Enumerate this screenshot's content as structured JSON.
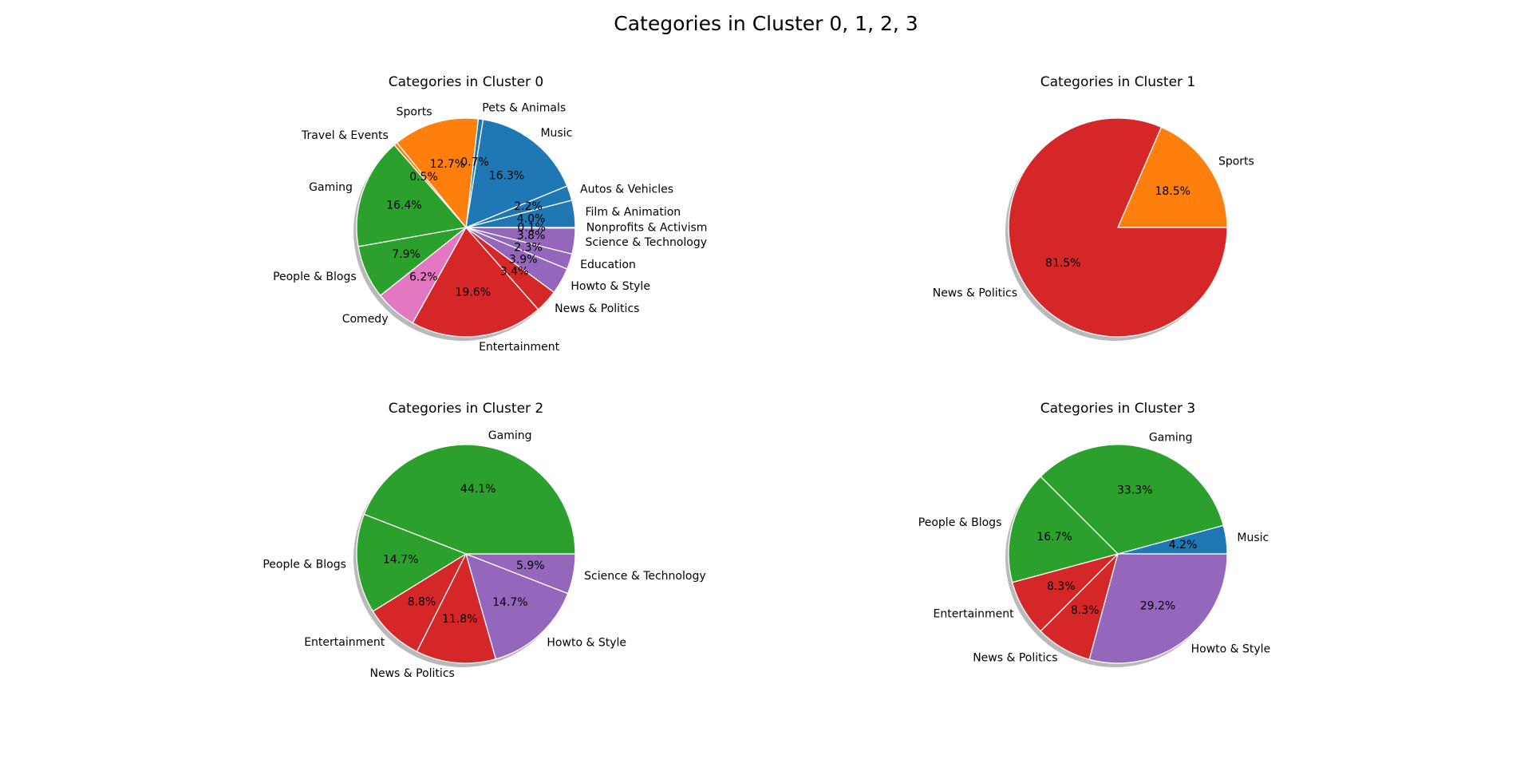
{
  "title": "Categories in Cluster 0, 1, 2, 3",
  "colors": {
    "blue": "#1f77b4",
    "orange": "#ff7f0e",
    "green": "#2ca02c",
    "red": "#d62728",
    "purple": "#9467bd",
    "pink": "#e377c2",
    "shadow": "#7f7f7f",
    "edge": "#ffffff"
  },
  "chart_data": [
    {
      "type": "pie",
      "title": "Categories in Cluster 0",
      "shadow": true,
      "start_angle": 0,
      "direction": "counterclockwise",
      "categories": [
        "Film & Animation",
        "Autos & Vehicles",
        "Music",
        "Pets & Animals",
        "Sports",
        "Travel & Events",
        "Gaming",
        "People & Blogs",
        "Comedy",
        "Entertainment",
        "News & Politics",
        "Howto & Style",
        "Education",
        "Science & Technology",
        "Nonprofits & Activism"
      ],
      "values": [
        4.0,
        2.2,
        16.3,
        0.7,
        12.7,
        0.5,
        16.4,
        7.9,
        6.2,
        19.6,
        3.4,
        3.9,
        2.3,
        3.8,
        0.1
      ],
      "labels": [
        "4.0%",
        "2.2%",
        "16.3%",
        "0.7%",
        "12.7%",
        "0.5%",
        "16.4%",
        "7.9%",
        "6.2%",
        "19.6%",
        "3.4%",
        "3.9%",
        "2.3%",
        "3.8%",
        "0.1%"
      ],
      "colors": [
        "#1f77b4",
        "#1f77b4",
        "#1f77b4",
        "#1f77b4",
        "#ff7f0e",
        "#ff7f0e",
        "#2ca02c",
        "#2ca02c",
        "#e377c2",
        "#d62728",
        "#d62728",
        "#9467bd",
        "#9467bd",
        "#9467bd",
        "#9467bd"
      ]
    },
    {
      "type": "pie",
      "title": "Categories in Cluster 1",
      "shadow": true,
      "start_angle": 0,
      "direction": "counterclockwise",
      "categories": [
        "Sports",
        "News & Politics"
      ],
      "values": [
        18.5,
        81.5
      ],
      "labels": [
        "18.5%",
        "81.5%"
      ],
      "colors": [
        "#ff7f0e",
        "#d62728"
      ]
    },
    {
      "type": "pie",
      "title": "Categories in Cluster 2",
      "shadow": true,
      "start_angle": 0,
      "direction": "counterclockwise",
      "categories": [
        "Gaming",
        "People & Blogs",
        "Entertainment",
        "News & Politics",
        "Howto & Style",
        "Science & Technology"
      ],
      "values": [
        44.1,
        14.7,
        8.8,
        11.8,
        14.7,
        5.9
      ],
      "labels": [
        "44.1%",
        "14.7%",
        "8.8%",
        "11.8%",
        "14.7%",
        "5.9%"
      ],
      "colors": [
        "#2ca02c",
        "#2ca02c",
        "#d62728",
        "#d62728",
        "#9467bd",
        "#9467bd"
      ]
    },
    {
      "type": "pie",
      "title": "Categories in Cluster 3",
      "shadow": true,
      "start_angle": 0,
      "direction": "counterclockwise",
      "categories": [
        "Music",
        "Gaming",
        "People & Blogs",
        "Entertainment",
        "News & Politics",
        "Howto & Style"
      ],
      "values": [
        4.2,
        33.3,
        16.7,
        8.3,
        8.3,
        29.2
      ],
      "labels": [
        "4.2%",
        "33.3%",
        "16.7%",
        "8.3%",
        "8.3%",
        "29.2%"
      ],
      "colors": [
        "#1f77b4",
        "#2ca02c",
        "#2ca02c",
        "#d62728",
        "#d62728",
        "#9467bd"
      ]
    }
  ]
}
